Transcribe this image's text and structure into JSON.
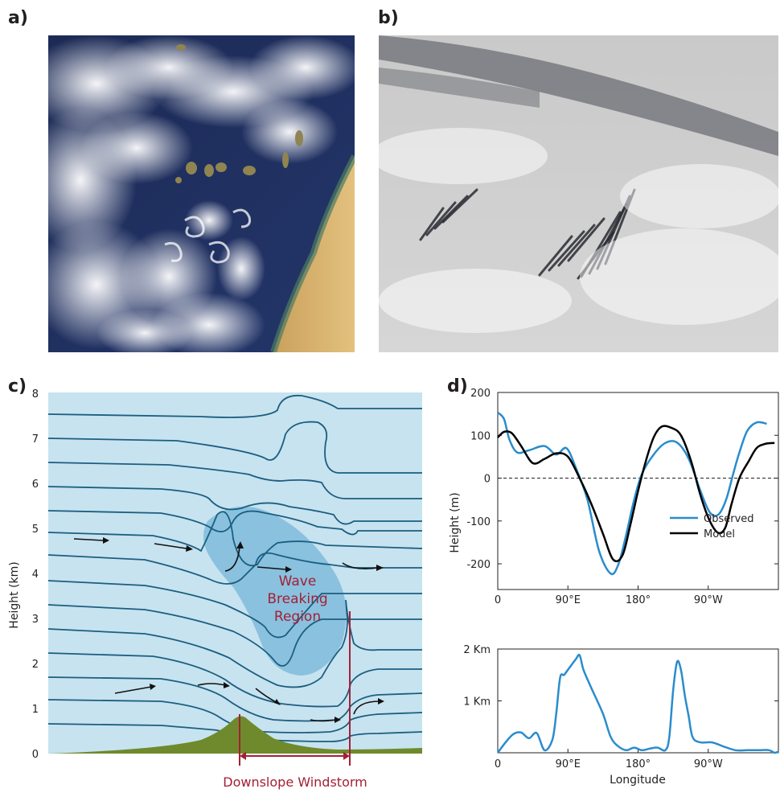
{
  "panels": {
    "a": {
      "label": "a)"
    },
    "b": {
      "label": "b)"
    },
    "c": {
      "label": "c)",
      "ylabel": "Height (km)",
      "yticks": [
        "0",
        "1",
        "2",
        "3",
        "4",
        "5",
        "6",
        "7",
        "8"
      ],
      "region_label": [
        "Wave",
        "Breaking",
        "Region"
      ],
      "bottom_label": "Downslope Windstorm",
      "colors": {
        "sky": "#c7e3ef",
        "line": "#1b5e80",
        "region": "#7ab8db",
        "terrain": "#6e8a2d",
        "accent": "#a32035"
      }
    },
    "d": {
      "label": "d)",
      "ylabel": "Height (m)",
      "xlabel": "Longitude",
      "top_yticks": [
        "200",
        "100",
        "0",
        "-100",
        "-200"
      ],
      "top_xticks": [
        "0",
        "90°E",
        "180°",
        "90°W"
      ],
      "bottom_yticks": [
        "2 Km",
        "1 Km"
      ],
      "bottom_xticks": [
        "0",
        "90°E",
        "180°",
        "90°W"
      ],
      "legend": {
        "observed": "Observed",
        "model": "Model"
      },
      "colors": {
        "observed": "#2a8ccc",
        "model": "#000000"
      }
    }
  },
  "chart_data": [
    {
      "type": "line",
      "panel": "d-top",
      "xlabel": "",
      "ylabel": "Height (m)",
      "ylim": [
        -260,
        200
      ],
      "xlim": [
        0,
        360
      ],
      "series": [
        {
          "name": "Observed",
          "x": [
            0,
            8,
            15,
            25,
            40,
            60,
            75,
            88,
            100,
            115,
            130,
            145,
            155,
            165,
            175,
            185,
            200,
            215,
            230,
            245,
            260,
            272,
            283,
            293,
            302,
            310,
            320,
            332,
            345
          ],
          "y": [
            153,
            138,
            90,
            60,
            65,
            75,
            55,
            70,
            25,
            -50,
            -170,
            -223,
            -200,
            -130,
            -50,
            10,
            55,
            82,
            83,
            45,
            -30,
            -80,
            -85,
            -50,
            10,
            60,
            110,
            130,
            127
          ]
        },
        {
          "name": "Model",
          "x": [
            0,
            8,
            18,
            30,
            45,
            60,
            75,
            90,
            105,
            120,
            135,
            148,
            160,
            170,
            180,
            190,
            200,
            210,
            222,
            235,
            248,
            260,
            272,
            283,
            292,
            300,
            310,
            322,
            332,
            343,
            355
          ],
          "y": [
            95,
            108,
            105,
            75,
            35,
            45,
            58,
            50,
            0,
            -60,
            -130,
            -190,
            -180,
            -110,
            -30,
            40,
            95,
            120,
            118,
            100,
            40,
            -40,
            -100,
            -128,
            -115,
            -60,
            0,
            40,
            70,
            80,
            82
          ]
        }
      ]
    },
    {
      "type": "line",
      "panel": "d-bottom",
      "xlabel": "Longitude",
      "ylabel": "",
      "ylim": [
        0,
        2
      ],
      "xlim": [
        0,
        360
      ],
      "series": [
        {
          "x": [
            0,
            10,
            20,
            30,
            40,
            50,
            60,
            70,
            75,
            80,
            85,
            90,
            100,
            105,
            110,
            120,
            135,
            145,
            155,
            165,
            175,
            185,
            195,
            205,
            215,
            220,
            225,
            230,
            235,
            240,
            245,
            250,
            260,
            275,
            290,
            305,
            320,
            335,
            348,
            355,
            360
          ],
          "y": [
            0.0,
            0.2,
            0.36,
            0.39,
            0.28,
            0.38,
            0.05,
            0.25,
            0.75,
            1.45,
            1.5,
            1.6,
            1.8,
            1.88,
            1.6,
            1.25,
            0.75,
            0.3,
            0.12,
            0.05,
            0.1,
            0.05,
            0.08,
            0.1,
            0.05,
            0.3,
            1.2,
            1.75,
            1.6,
            1.1,
            0.7,
            0.3,
            0.2,
            0.2,
            0.12,
            0.05,
            0.05,
            0.05,
            0.05,
            0.0,
            0.02
          ]
        }
      ]
    }
  ]
}
